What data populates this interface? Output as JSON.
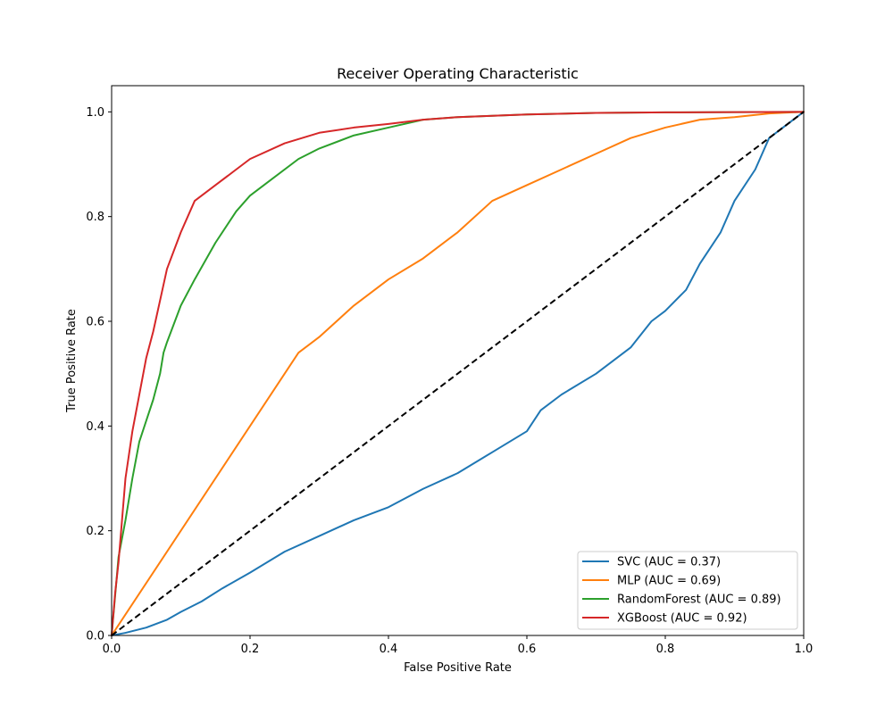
{
  "chart_data": {
    "type": "line",
    "title": "Receiver Operating Characteristic",
    "xlabel": "False Positive Rate",
    "ylabel": "True Positive Rate",
    "xlim": [
      0,
      1
    ],
    "ylim": [
      0,
      1.05
    ],
    "xticks": [
      0.0,
      0.2,
      0.4,
      0.6,
      0.8,
      1.0
    ],
    "yticks": [
      0.0,
      0.2,
      0.4,
      0.6,
      0.8,
      1.0
    ],
    "xtick_labels": [
      "0.0",
      "0.2",
      "0.4",
      "0.6",
      "0.8",
      "1.0"
    ],
    "ytick_labels": [
      "0.0",
      "0.2",
      "0.4",
      "0.6",
      "0.8",
      "1.0"
    ],
    "grid": false,
    "legend_position": "lower-right",
    "series": [
      {
        "name": "SVC (AUC = 0.37)",
        "color": "#1f77b4",
        "x": [
          0,
          0.02,
          0.05,
          0.08,
          0.1,
          0.13,
          0.16,
          0.2,
          0.25,
          0.3,
          0.35,
          0.4,
          0.45,
          0.5,
          0.55,
          0.6,
          0.62,
          0.65,
          0.7,
          0.75,
          0.78,
          0.8,
          0.83,
          0.85,
          0.88,
          0.9,
          0.93,
          0.95,
          0.98,
          1.0
        ],
        "y": [
          0,
          0.005,
          0.015,
          0.03,
          0.045,
          0.065,
          0.09,
          0.12,
          0.16,
          0.19,
          0.22,
          0.245,
          0.28,
          0.31,
          0.35,
          0.39,
          0.43,
          0.46,
          0.5,
          0.55,
          0.6,
          0.62,
          0.66,
          0.71,
          0.77,
          0.83,
          0.89,
          0.95,
          0.98,
          1.0
        ]
      },
      {
        "name": "MLP (AUC = 0.69)",
        "color": "#ff7f0e",
        "x": [
          0,
          0.27,
          0.3,
          0.35,
          0.4,
          0.45,
          0.5,
          0.55,
          0.6,
          0.65,
          0.7,
          0.75,
          0.8,
          0.85,
          0.9,
          0.95,
          1.0
        ],
        "y": [
          0,
          0.54,
          0.57,
          0.63,
          0.68,
          0.72,
          0.77,
          0.83,
          0.86,
          0.89,
          0.92,
          0.95,
          0.97,
          0.985,
          0.99,
          0.997,
          1.0
        ]
      },
      {
        "name": "RandomForest (AUC = 0.89)",
        "color": "#2ca02c",
        "x": [
          0,
          0.01,
          0.02,
          0.03,
          0.04,
          0.05,
          0.06,
          0.07,
          0.075,
          0.08,
          0.1,
          0.12,
          0.15,
          0.18,
          0.2,
          0.23,
          0.27,
          0.3,
          0.35,
          0.4,
          0.45,
          0.5,
          0.6,
          0.7,
          0.8,
          1.0
        ],
        "y": [
          0,
          0.15,
          0.22,
          0.3,
          0.37,
          0.41,
          0.45,
          0.5,
          0.54,
          0.56,
          0.63,
          0.68,
          0.75,
          0.81,
          0.84,
          0.87,
          0.91,
          0.93,
          0.955,
          0.97,
          0.985,
          0.99,
          0.995,
          0.998,
          0.999,
          1.0
        ]
      },
      {
        "name": "XGBoost (AUC = 0.92)",
        "color": "#d62728",
        "x": [
          0,
          0.005,
          0.01,
          0.015,
          0.02,
          0.03,
          0.04,
          0.05,
          0.06,
          0.07,
          0.08,
          0.1,
          0.12,
          0.15,
          0.18,
          0.2,
          0.25,
          0.3,
          0.35,
          0.4,
          0.45,
          0.5,
          0.6,
          0.7,
          0.8,
          1.0
        ],
        "y": [
          0,
          0.08,
          0.14,
          0.22,
          0.3,
          0.39,
          0.46,
          0.53,
          0.58,
          0.64,
          0.7,
          0.77,
          0.83,
          0.86,
          0.89,
          0.91,
          0.94,
          0.96,
          0.97,
          0.977,
          0.985,
          0.99,
          0.995,
          0.998,
          0.999,
          1.0
        ]
      }
    ],
    "reference_line": {
      "color": "#000000",
      "style": "dashed",
      "x": [
        0,
        1
      ],
      "y": [
        0,
        1
      ]
    }
  }
}
